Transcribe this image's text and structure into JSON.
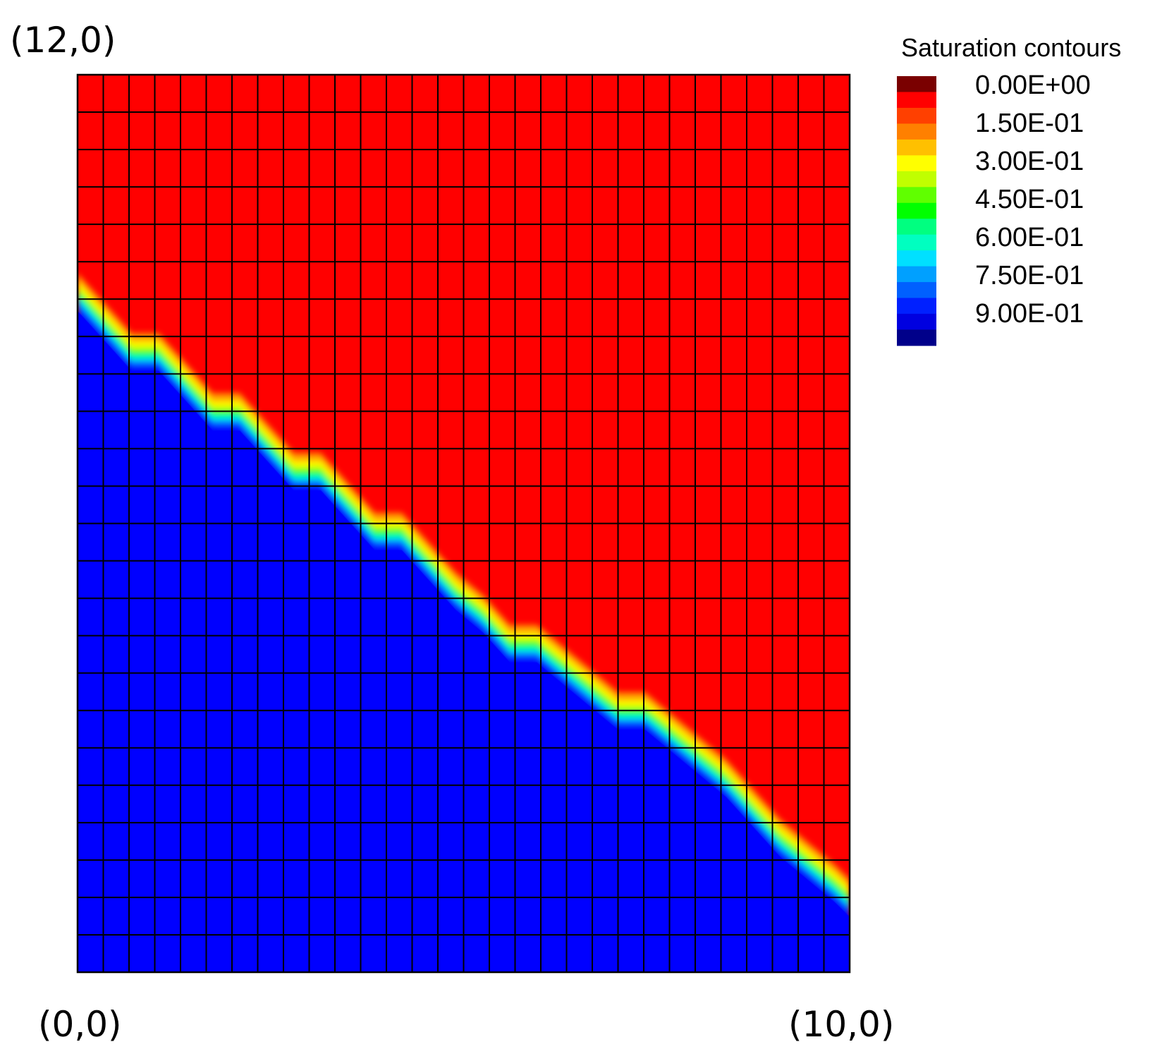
{
  "chart_data": {
    "type": "heatmap",
    "title": "",
    "legend": {
      "title": "Saturation contours",
      "placement": "top-right",
      "levels": [
        "0.00E+00",
        "1.50E-01",
        "3.00E-01",
        "4.50E-01",
        "6.00E-01",
        "7.50E-01",
        "9.00E-01"
      ]
    },
    "corner_labels": {
      "top_left": "(12,0)",
      "bottom_left": "(0,0)",
      "bottom_right": "(10,0)"
    },
    "grid": {
      "columns": 30,
      "rows": 24,
      "lines": true
    },
    "domain": {
      "x_range": [
        0,
        10
      ],
      "y_range": [
        0,
        12
      ]
    },
    "front_y": [
      9.0,
      8.6,
      8.2,
      8.2,
      7.8,
      7.4,
      7.4,
      7.0,
      6.6,
      6.6,
      6.2,
      5.8,
      5.8,
      5.4,
      5.0,
      4.7,
      4.3,
      4.3,
      4.0,
      3.7,
      3.4,
      3.4,
      3.1,
      2.8,
      2.5,
      2.1,
      1.7,
      1.4,
      1.1,
      0.9
    ],
    "front_x": [
      0.0,
      0.35,
      0.7,
      1.05,
      1.4,
      1.75,
      2.1,
      2.45,
      2.8,
      3.15,
      3.5,
      3.85,
      4.2,
      4.55,
      4.9,
      5.25,
      5.6,
      5.95,
      6.3,
      6.65,
      7.0,
      7.35,
      7.7,
      8.05,
      8.4,
      8.75,
      9.1,
      9.45,
      9.8,
      10.0
    ],
    "front_width": 0.35,
    "saturation_above_front": 0.0,
    "saturation_below_front": 0.95,
    "colors": {
      "low": "#ff0000",
      "high": "#0000ff",
      "grid_line": "#000000"
    },
    "colormap": [
      "#7a0000",
      "#ff0000",
      "#ff4000",
      "#ff8000",
      "#ffc000",
      "#ffff00",
      "#c0ff00",
      "#60ff00",
      "#00ff00",
      "#00ff80",
      "#00ffc0",
      "#00e0ff",
      "#00a0ff",
      "#0060ff",
      "#0020ff",
      "#0000e0",
      "#00008a"
    ]
  }
}
